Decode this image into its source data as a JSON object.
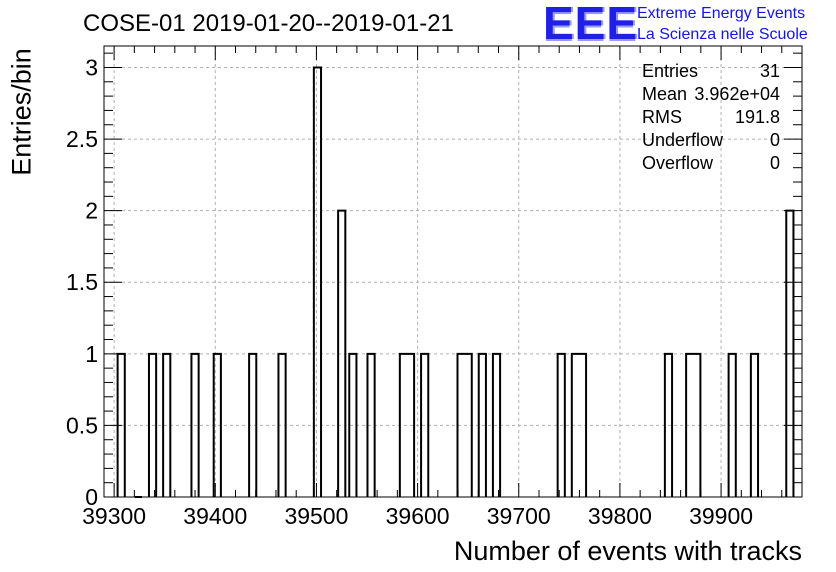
{
  "chart_data": {
    "type": "bar",
    "title": "COSE-01 2019-01-20--2019-01-21",
    "xlabel": "Number of events with tracks",
    "ylabel": "Entries/bin",
    "xlim": [
      39290,
      39980
    ],
    "ylim": [
      0,
      3.15
    ],
    "bin_width": 7.1,
    "x_ticks": [
      39300,
      39400,
      39500,
      39600,
      39700,
      39800,
      39900
    ],
    "y_ticks": [
      0,
      0.5,
      1,
      1.5,
      2,
      2.5,
      3
    ],
    "y_tick_labels": [
      "0",
      "0.5",
      "1",
      "1.5",
      "2",
      "2.5",
      "3"
    ],
    "grid": true,
    "bins": [
      {
        "x": 39307,
        "value": 1
      },
      {
        "x": 39324,
        "value": 0
      },
      {
        "x": 39338,
        "value": 1
      },
      {
        "x": 39352,
        "value": 1
      },
      {
        "x": 39380,
        "value": 1
      },
      {
        "x": 39402,
        "value": 1
      },
      {
        "x": 39437,
        "value": 1
      },
      {
        "x": 39466,
        "value": 1
      },
      {
        "x": 39501,
        "value": 3
      },
      {
        "x": 39525,
        "value": 2
      },
      {
        "x": 39536,
        "value": 1
      },
      {
        "x": 39554,
        "value": 1
      },
      {
        "x": 39586,
        "value": 1
      },
      {
        "x": 39593,
        "value": 1
      },
      {
        "x": 39607,
        "value": 1
      },
      {
        "x": 39643,
        "value": 1
      },
      {
        "x": 39650,
        "value": 1
      },
      {
        "x": 39664,
        "value": 1
      },
      {
        "x": 39678,
        "value": 1
      },
      {
        "x": 39742,
        "value": 1
      },
      {
        "x": 39756,
        "value": 1
      },
      {
        "x": 39763,
        "value": 1
      },
      {
        "x": 39848,
        "value": 1
      },
      {
        "x": 39869,
        "value": 1
      },
      {
        "x": 39876,
        "value": 1
      },
      {
        "x": 39911,
        "value": 1
      },
      {
        "x": 39933,
        "value": 1
      },
      {
        "x": 39968,
        "value": 2
      }
    ]
  },
  "stats_box": {
    "entries_label": "Entries",
    "entries_value": "31",
    "mean_label": "Mean",
    "mean_value": "3.962e+04",
    "rms_label": "RMS",
    "rms_value": "191.8",
    "underflow_label": "Underflow",
    "underflow_value": "0",
    "overflow_label": "Overflow",
    "overflow_value": "0"
  },
  "logo": {
    "mark": "EEE",
    "line1": "Extreme Energy Events",
    "line2": "La Scienza nelle Scuole",
    "color": "#1f1fe8"
  },
  "colors": {
    "bar_stroke": "#000000",
    "grid": "#b0b0b0",
    "axis": "#000000"
  }
}
